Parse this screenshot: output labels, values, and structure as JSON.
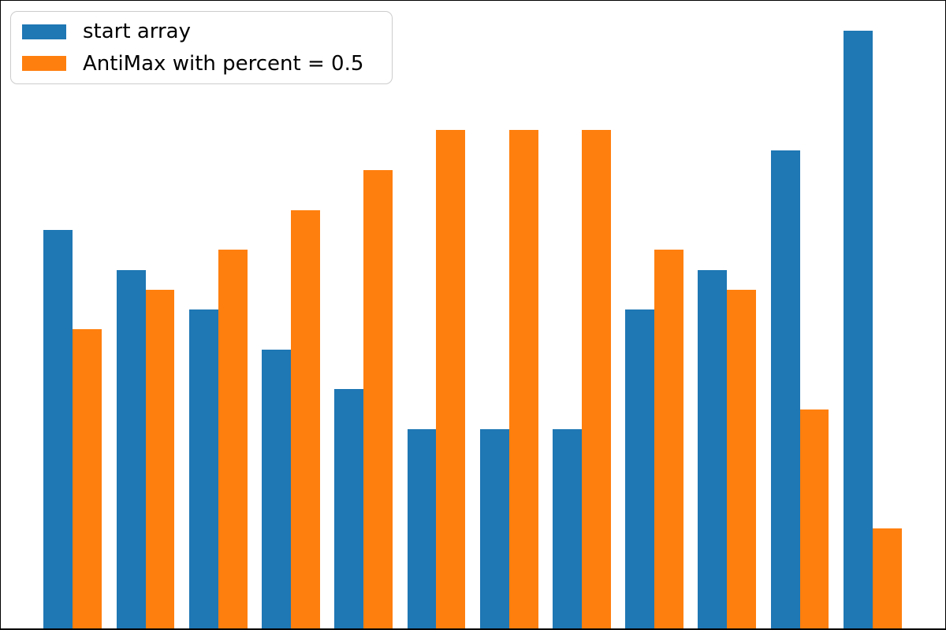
{
  "chart_data": {
    "type": "bar",
    "title": "",
    "xlabel": "",
    "ylabel": "",
    "n_groups": 12,
    "x": [
      0,
      1,
      2,
      3,
      4,
      5,
      6,
      7,
      8,
      9,
      10,
      11
    ],
    "series": [
      {
        "name": "start array",
        "color": "#1f77b4",
        "values": [
          10,
          9,
          8,
          7,
          6,
          5,
          5,
          5,
          8,
          9,
          12,
          15
        ]
      },
      {
        "name": "AntiMax with percent = 0.5",
        "color": "#ff7f0e",
        "values": [
          7.5,
          8.5,
          9.5,
          10.5,
          11.5,
          12.5,
          12.5,
          12.5,
          9.5,
          8.5,
          5.5,
          2.5
        ]
      }
    ],
    "bar_width": 0.4,
    "xlim": [
      -0.99,
      12.0
    ],
    "ylim": [
      0,
      15.75
    ],
    "grid": false,
    "x_tick_labels_visible": false,
    "y_tick_labels_visible": false,
    "legend_position": "upper left",
    "background": "#ffffff",
    "frame_color": "#000000"
  }
}
